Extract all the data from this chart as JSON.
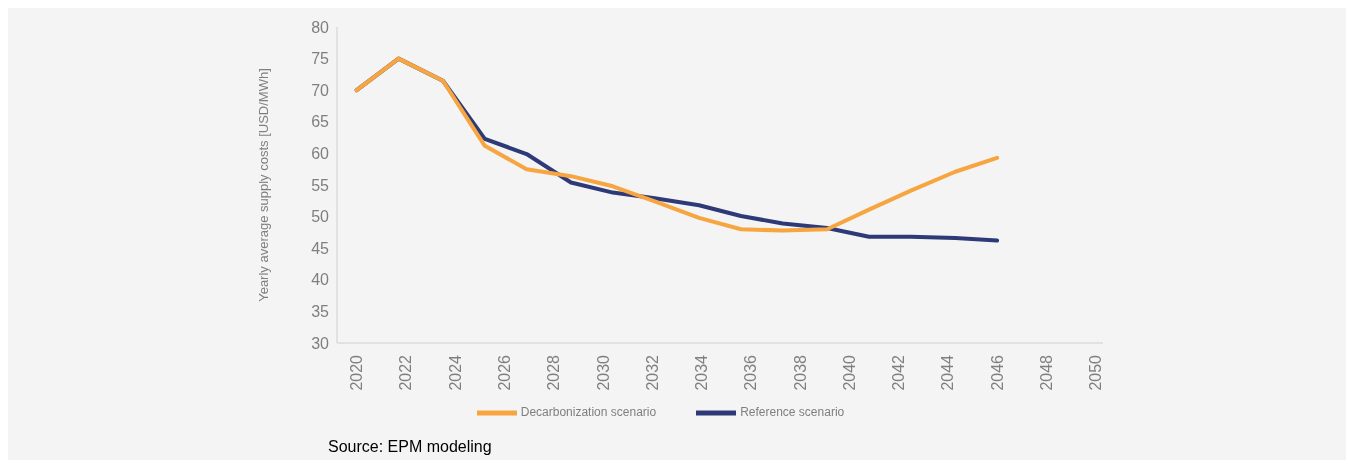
{
  "chart_data": {
    "type": "line",
    "ylabel": "Yearly average supply costs [USD/MWh]",
    "x": [
      2020,
      2021.7,
      2023.5,
      2025.2,
      2026.9,
      2028.7,
      2030.4,
      2032.1,
      2033.9,
      2035.6,
      2037.3,
      2039.1,
      2040.8,
      2042.5,
      2044.3,
      2046
    ],
    "series": [
      {
        "name": "Reference scenario",
        "color": "#2e3a78",
        "values": [
          70,
          75,
          71.5,
          62.3,
          59.9,
          55.4,
          53.8,
          52.9,
          51.8,
          50.1,
          48.9,
          48.2,
          46.8,
          46.8,
          46.6,
          46.2
        ]
      },
      {
        "name": "Decarbonization scenario",
        "color": "#f7a541",
        "values": [
          70,
          75,
          71.5,
          61.2,
          57.5,
          56.4,
          54.8,
          52.4,
          49.8,
          48.0,
          47.8,
          48.0,
          51.1,
          54.1,
          57.1,
          59.3
        ]
      }
    ],
    "xlim": [
      2019.2,
      2050.3
    ],
    "xticks": [
      2020,
      2022,
      2024,
      2026,
      2028,
      2030,
      2032,
      2034,
      2036,
      2038,
      2040,
      2042,
      2044,
      2046,
      2048,
      2050
    ],
    "ylim": [
      30,
      80
    ],
    "yticks": [
      30,
      35,
      40,
      45,
      50,
      55,
      60,
      65,
      70,
      75,
      80
    ],
    "grid": false,
    "legend": "bottom",
    "line_style": "solid",
    "annotations": [
      "Source: EPM modeling"
    ]
  }
}
